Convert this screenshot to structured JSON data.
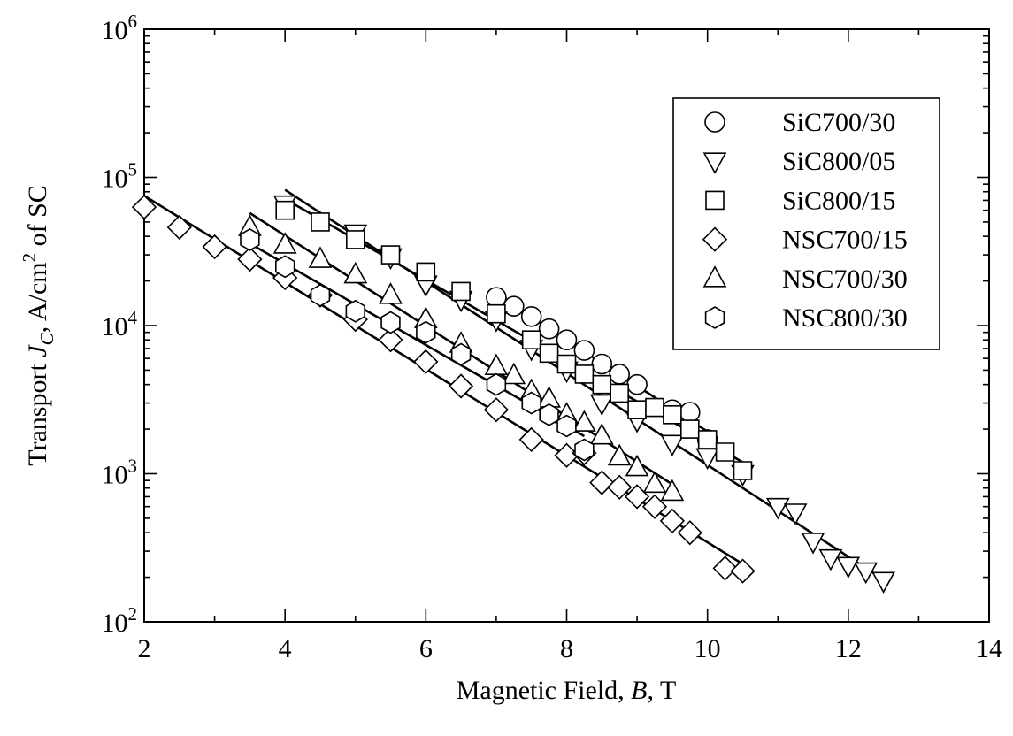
{
  "chart_data": {
    "type": "scatter",
    "title": "",
    "xlabel": {
      "prefix": "Magnetic Field, ",
      "symbol": "B",
      "suffix": ", T"
    },
    "ylabel": {
      "prefix": "Transport ",
      "symbol": "J",
      "subscript": "C",
      "middle": ", A/cm",
      "superscript": "2",
      "suffix": " of SC"
    },
    "xlim": [
      2,
      14
    ],
    "ylim": [
      100,
      1000000
    ],
    "yscale": "log",
    "xticks": [
      2,
      4,
      6,
      8,
      10,
      12,
      14
    ],
    "yticks": [
      {
        "value": 100,
        "base": "10",
        "exp": "2"
      },
      {
        "value": 1000,
        "base": "10",
        "exp": "3"
      },
      {
        "value": 10000,
        "base": "10",
        "exp": "4"
      },
      {
        "value": 100000,
        "base": "10",
        "exp": "5"
      },
      {
        "value": 1000000,
        "base": "10",
        "exp": "6"
      }
    ],
    "grid": false,
    "legend_position": "top-right",
    "series": [
      {
        "name": "SiC700/30",
        "marker": "circle",
        "x": [
          7.0,
          7.25,
          7.5,
          7.75,
          8.0,
          8.25,
          8.5,
          8.75,
          9.0,
          9.5,
          9.75,
          10.0
        ],
        "y": [
          15500,
          13500,
          11500,
          9500,
          8000,
          6800,
          5500,
          4700,
          4000,
          2700,
          2600,
          1700
        ]
      },
      {
        "name": "SiC800/05",
        "marker": "triangle-down",
        "x": [
          4.0,
          5.0,
          5.5,
          6.0,
          6.5,
          7.0,
          7.5,
          8.0,
          8.5,
          9.0,
          9.5,
          10.0,
          10.5,
          11.0,
          11.25,
          11.5,
          11.75,
          12.0,
          12.25,
          12.5
        ],
        "y": [
          66000,
          42000,
          29000,
          19000,
          15000,
          11000,
          7000,
          5000,
          3000,
          2300,
          1600,
          1300,
          1000,
          600,
          550,
          350,
          270,
          240,
          220,
          190
        ]
      },
      {
        "name": "SiC800/15",
        "marker": "square",
        "x": [
          4.0,
          4.5,
          5.0,
          5.5,
          6.0,
          6.5,
          7.0,
          7.5,
          7.75,
          8.0,
          8.25,
          8.5,
          8.75,
          9.0,
          9.25,
          9.5,
          9.75,
          10.0,
          10.25,
          10.5
        ],
        "y": [
          60000,
          50000,
          38000,
          30000,
          23000,
          17000,
          12000,
          8000,
          6500,
          5500,
          4700,
          4000,
          3500,
          2700,
          2800,
          2500,
          2000,
          1700,
          1400,
          1050
        ]
      },
      {
        "name": "NSC700/15",
        "marker": "diamond",
        "x": [
          2.0,
          2.5,
          3.0,
          3.5,
          4.0,
          4.5,
          5.0,
          5.5,
          6.0,
          6.5,
          7.0,
          7.5,
          8.0,
          8.25,
          8.5,
          8.75,
          9.0,
          9.25,
          9.5,
          9.75,
          10.25,
          10.5
        ],
        "y": [
          63000,
          46000,
          34000,
          28000,
          21000,
          16000,
          11000,
          8000,
          5700,
          3900,
          2700,
          1700,
          1330,
          1380,
          870,
          810,
          700,
          600,
          480,
          400,
          230,
          220
        ]
      },
      {
        "name": "NSC700/30",
        "marker": "triangle-up",
        "x": [
          3.5,
          4.0,
          4.5,
          5.0,
          5.5,
          6.0,
          6.5,
          7.0,
          7.25,
          7.5,
          7.75,
          8.0,
          8.25,
          8.5,
          8.75,
          9.0,
          9.25,
          9.5
        ],
        "y": [
          46000,
          35000,
          28000,
          22000,
          16000,
          11000,
          7500,
          5300,
          4600,
          3600,
          3200,
          2500,
          2200,
          1800,
          1300,
          1100,
          850,
          750
        ]
      },
      {
        "name": "NSC800/30",
        "marker": "hexagon",
        "x": [
          3.5,
          4.0,
          4.5,
          5.0,
          5.5,
          6.0,
          6.5,
          7.0,
          7.5,
          7.75,
          8.0,
          8.25
        ],
        "y": [
          38000,
          25000,
          16000,
          12500,
          10500,
          9000,
          6400,
          4000,
          3000,
          2500,
          2100,
          1450
        ]
      }
    ]
  }
}
